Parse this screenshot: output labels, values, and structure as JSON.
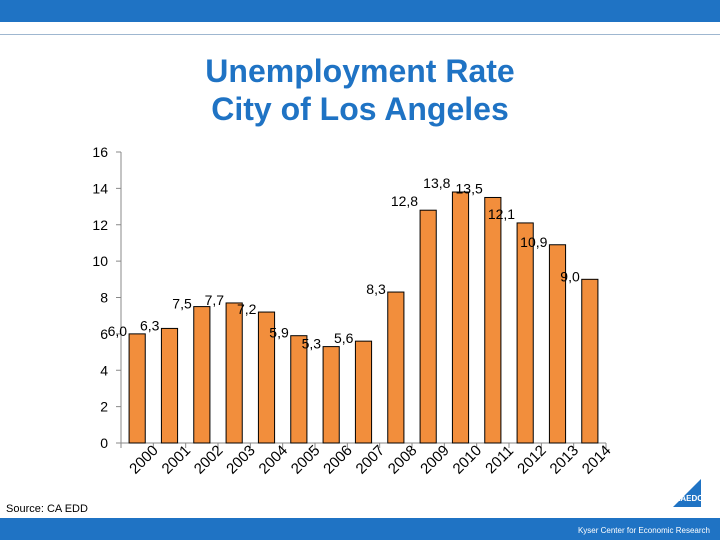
{
  "header": {
    "title_line1": "Unemployment Rate",
    "title_line2": "City of Los Angeles"
  },
  "footer": {
    "source": "Source: CA EDD",
    "credit": "Kyser Center for Economic Research",
    "logo_text": "LAEDC"
  },
  "colors": {
    "accent": "#1f73c4",
    "bar_fill": "#f28e3c",
    "bar_stroke": "#000000"
  },
  "chart_data": {
    "type": "bar",
    "title": "Unemployment Rate City of Los Angeles",
    "xlabel": "",
    "ylabel": "",
    "categories": [
      "2000",
      "2001",
      "2002",
      "2003",
      "2004",
      "2005",
      "2006",
      "2007",
      "2008",
      "2009",
      "2010",
      "2011",
      "2012",
      "2013",
      "2014"
    ],
    "values": [
      6.0,
      6.3,
      7.5,
      7.7,
      7.2,
      5.9,
      5.3,
      5.6,
      8.3,
      12.8,
      13.8,
      13.5,
      12.1,
      10.9,
      9.0
    ],
    "labels": [
      "6,0",
      "6,3",
      "7,5",
      "7,7",
      "7,2",
      "5,9",
      "5,3",
      "5,6",
      "8,3",
      "12,8",
      "13,8",
      "13,5",
      "12,1",
      "10,9",
      "9,0"
    ],
    "ylim": [
      0,
      16
    ],
    "yticks": [
      0,
      2,
      4,
      6,
      8,
      10,
      12,
      14,
      16
    ],
    "grid": false,
    "legend": "none"
  }
}
